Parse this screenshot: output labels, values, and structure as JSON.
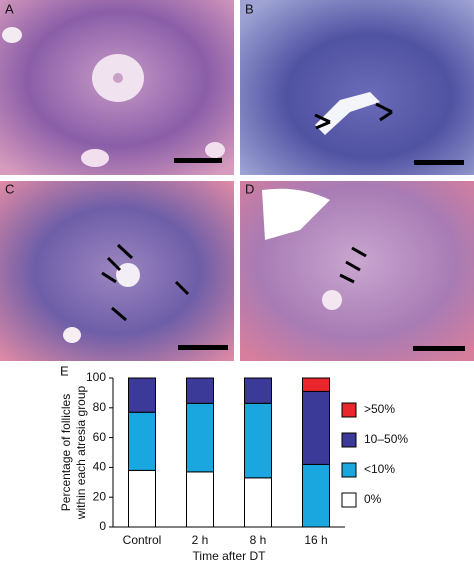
{
  "panels": [
    "A",
    "B",
    "C",
    "D"
  ],
  "chart_data": {
    "type": "stacked-bar",
    "panel_label": "E",
    "ylabel": [
      "Percentage of follicles",
      "within each atresia group"
    ],
    "xlabel": "Time after DT",
    "categories": [
      "Control",
      "2 h",
      "8 h",
      "16 h"
    ],
    "series": [
      {
        "name": "0%",
        "color": "#ffffff",
        "values": [
          38,
          37,
          33,
          0
        ]
      },
      {
        "name": "<10%",
        "color": "#1aa7e0",
        "values": [
          39,
          46,
          50,
          42
        ]
      },
      {
        "name": "10–50%",
        "color": "#3b3a99",
        "values": [
          23,
          17,
          17,
          49
        ]
      },
      {
        "name": ">50%",
        "color": "#e8262b",
        "values": [
          0,
          0,
          0,
          9
        ]
      }
    ],
    "ylim": [
      0,
      100
    ],
    "yticks": [
      0,
      20,
      40,
      60,
      80,
      100
    ]
  }
}
